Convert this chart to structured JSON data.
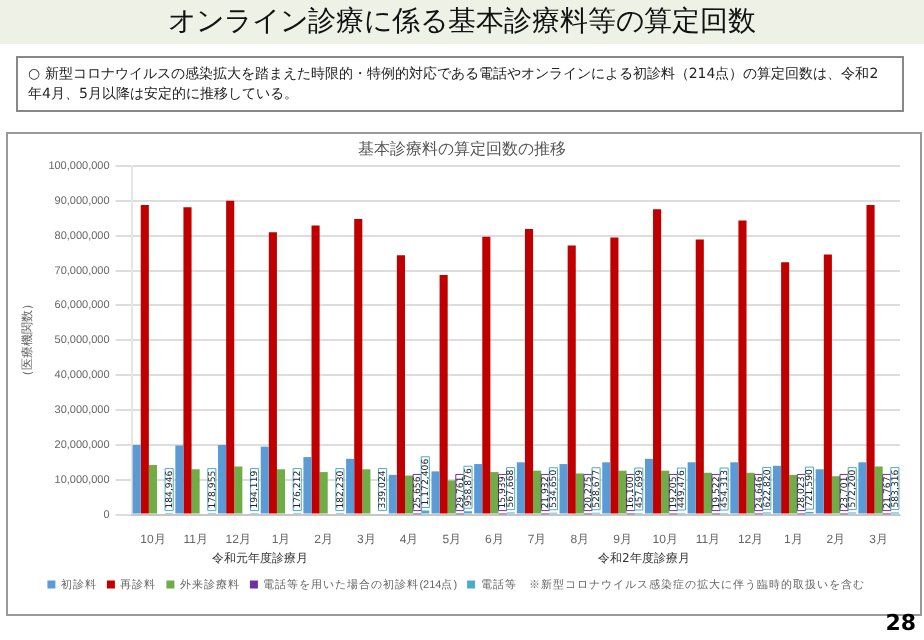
{
  "chart_data": {
    "type": "bar",
    "title": "オンライン診療に係る基本診療料等の算定回数",
    "subtitle": "○ 新型コロナウイルスの感染拡大を踏まえた時限的・特例的対応である電話やオンラインによる初診料（214点）の算定回数は、令和2年4月、5月以降は安定的に推移している。",
    "ylabel": "（医療機関数）",
    "annotations": [
      "基本診療料の算定回数の推移",
      "令和元年度診療月",
      "令和2年度診療月",
      "28"
    ],
    "categories": [
      "10月",
      "11月",
      "12月",
      "1月",
      "2月",
      "3月",
      "4月",
      "5月",
      "6月",
      "7月",
      "8月",
      "9月",
      "10月",
      "11月",
      "12月",
      "1月",
      "2月",
      "3月"
    ],
    "series": [
      {
        "name": "初診料",
        "color": "#5b9bd5",
        "values": [
          20000000,
          19800000,
          20000000,
          19500000,
          16500000,
          16000000,
          11400000,
          12400000,
          14500000,
          15000000,
          14500000,
          15000000,
          16000000,
          15000000,
          15000000,
          14000000,
          13000000,
          15000000
        ]
      },
      {
        "name": "再診料",
        "color": "#c00000",
        "values": [
          88800000,
          88200000,
          90000000,
          81000000,
          82900000,
          84800000,
          74400000,
          68700000,
          79700000,
          81900000,
          77200000,
          79500000,
          87600000,
          78900000,
          84400000,
          72400000,
          74600000,
          88800000
        ]
      },
      {
        "name": "外来診療料",
        "color": "#70ad47",
        "values": [
          14200000,
          13000000,
          13800000,
          13000000,
          12200000,
          13000000,
          11200000,
          9800000,
          12200000,
          12600000,
          11800000,
          12600000,
          12600000,
          12000000,
          12000000,
          11400000,
          11000000,
          13800000
        ]
      },
      {
        "name": "電話等を用いた場合の初診料(214点)",
        "color": "#7030a0",
        "values": [
          null,
          null,
          null,
          null,
          null,
          null,
          25656,
          29761,
          15939,
          21932,
          20275,
          16100,
          19205,
          19522,
          24646,
          28023,
          23701,
          21767
        ],
        "value_labels": [
          null,
          null,
          null,
          null,
          null,
          null,
          "25,656",
          "29,761",
          "15,939",
          "21,932",
          "20,275",
          "16,100",
          "19,205",
          "19,522",
          "24,646",
          "28,023",
          "23,701",
          "21,767"
        ]
      },
      {
        "name": "電話等　※新型コロナウイルス感染症の拡大に伴う臨時的取扱いを含む",
        "color": "#4bacc6",
        "values": [
          184946,
          178955,
          194119,
          176212,
          182230,
          339024,
          1172406,
          958876,
          567668,
          534650,
          528677,
          457699,
          449476,
          454313,
          622820,
          721590,
          572200,
          583316
        ],
        "value_labels": [
          "184,946",
          "178,955",
          "194,119",
          "176,212",
          "182,230",
          "339,024",
          "1,172,406",
          "958,876",
          "567,668",
          "534,650",
          "528,677",
          "457,699",
          "449,476",
          "454,313",
          "622,820",
          "721,590",
          "572,200",
          "583,316"
        ]
      }
    ],
    "ylim": [
      0,
      100000000
    ],
    "yticks": [
      0,
      {
        "value": 10000000,
        "label": "10,000,000"
      },
      {
        "value": 20000000,
        "label": "20,000,000"
      },
      {
        "value": 30000000,
        "label": "30,000,000"
      },
      {
        "value": 40000000,
        "label": "40,000,000"
      },
      {
        "value": 50000000,
        "label": "50,000,000"
      },
      {
        "value": 60000000,
        "label": "60,000,000"
      },
      {
        "value": 70000000,
        "label": "70,000,000"
      },
      {
        "value": 80000000,
        "label": "80,000,000"
      },
      {
        "value": 90000000,
        "label": "90,000,000"
      },
      {
        "value": 100000000,
        "label": "100,000,000"
      }
    ],
    "grid": "y",
    "legend": "bottom"
  }
}
